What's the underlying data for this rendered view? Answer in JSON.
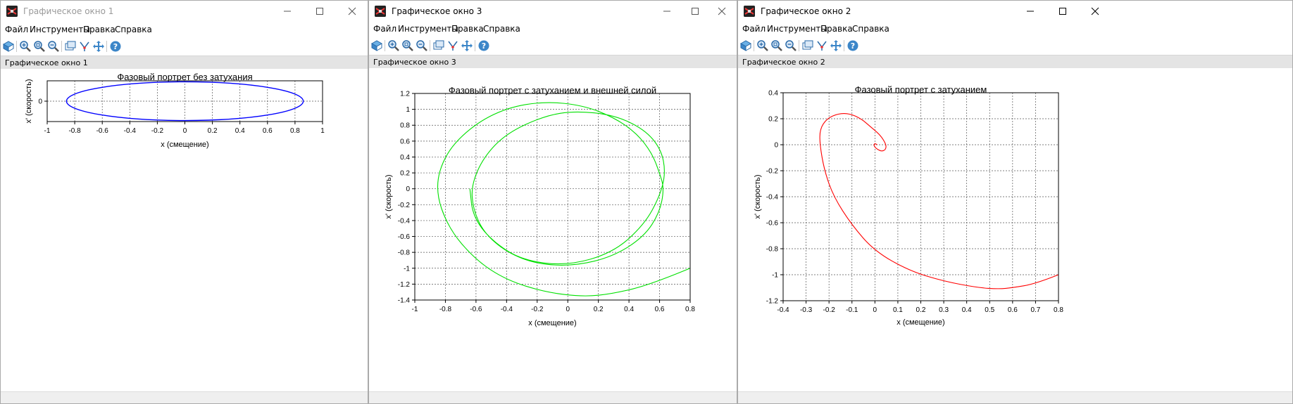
{
  "menu": [
    "Файл",
    "Инструменты",
    "Правка",
    "Справка"
  ],
  "windows": [
    {
      "title": "Графическое окно 1",
      "subheader": "Графическое окно 1",
      "active": false,
      "chart_data": {
        "type": "line",
        "title": "Фазовый портрет без затухания",
        "xlabel": "x (смещение)",
        "ylabel": "x' (скорость)",
        "xlim": [
          -1,
          1
        ],
        "ylim": [
          -1,
          1
        ],
        "xticks": [
          -1,
          -0.8,
          -0.6,
          -0.4,
          -0.2,
          0,
          0.2,
          0.4,
          0.6,
          0.8,
          1
        ],
        "xtick_labels": [
          "-1",
          "-0.8",
          "-0.6",
          "-0.4",
          "-0.2",
          "0",
          "0.2",
          "0.4",
          "0.6",
          "0.8",
          "1"
        ],
        "yticks": [
          0
        ],
        "ytick_labels": [
          "0"
        ],
        "grid": true,
        "color": "#0000ff",
        "series": [
          {
            "shape": "ellipse",
            "center": [
              0,
              0
            ],
            "x_amplitude": 0.86,
            "y_amplitude": 0.95
          }
        ]
      }
    },
    {
      "title": "Графическое окно 3",
      "subheader": "Графическое окно 3",
      "active": false,
      "chart_data": {
        "type": "line",
        "title": "Фазовый портрет с затуханием и внешней силой",
        "xlabel": "x (смещение)",
        "ylabel": "x' (скорость)",
        "xlim": [
          -1,
          0.8
        ],
        "ylim": [
          -1.4,
          1.2
        ],
        "xticks": [
          -1,
          -0.8,
          -0.6,
          -0.4,
          -0.2,
          0,
          0.2,
          0.4,
          0.6,
          0.8
        ],
        "xtick_labels": [
          "-1",
          "-0.8",
          "-0.6",
          "-0.4",
          "-0.2",
          "0",
          "0.2",
          "0.4",
          "0.6",
          "0.8"
        ],
        "yticks": [
          -1.4,
          -1.2,
          -1,
          -0.8,
          -0.6,
          -0.4,
          -0.2,
          0,
          0.2,
          0.4,
          0.6,
          0.8,
          1,
          1.2
        ],
        "ytick_labels": [
          "-1.4",
          "-1.2",
          "-1",
          "-0.8",
          "-0.6",
          "-0.4",
          "-0.2",
          "0",
          "0.2",
          "0.4",
          "0.6",
          "0.8",
          "1",
          "1.2"
        ],
        "grid": true,
        "color": "#00e000",
        "series": [
          {
            "x": [
              0.8,
              0.55,
              0.3,
              0.1,
              -0.15,
              -0.4,
              -0.6,
              -0.78,
              -0.87,
              -0.8,
              -0.62,
              -0.4,
              -0.15,
              0.1,
              0.3,
              0.45,
              0.55,
              0.6,
              0.63,
              0.6,
              0.5,
              0.3,
              0.05,
              -0.2,
              -0.4,
              -0.55,
              -0.62,
              -0.63,
              -0.55,
              -0.4,
              -0.15,
              0.05,
              0.3,
              0.5,
              0.61,
              0.64,
              0.6,
              0.5,
              0.3,
              0,
              -0.3,
              -0.5,
              -0.62,
              -0.64
            ],
            "y": [
              -1.0,
              -1.2,
              -1.32,
              -1.36,
              -1.3,
              -1.15,
              -0.9,
              -0.5,
              0.0,
              0.45,
              0.8,
              1.02,
              1.1,
              1.05,
              0.9,
              0.7,
              0.45,
              0.2,
              0.0,
              -0.3,
              -0.6,
              -0.85,
              -0.97,
              -0.95,
              -0.8,
              -0.55,
              -0.25,
              0.05,
              0.4,
              0.7,
              0.92,
              0.98,
              0.93,
              0.75,
              0.5,
              0.2,
              -0.1,
              -0.45,
              -0.8,
              -0.97,
              -0.9,
              -0.65,
              -0.35,
              0.0
            ]
          }
        ]
      }
    },
    {
      "title": "Графическое окно 2",
      "subheader": "Графическое окно 2",
      "active": true,
      "chart_data": {
        "type": "line",
        "title": "Фазовый портрет с затуханием",
        "xlabel": "x (смещение)",
        "ylabel": "x' (скорость)",
        "xlim": [
          -0.4,
          0.8
        ],
        "ylim": [
          -1.2,
          0.4
        ],
        "xticks": [
          -0.4,
          -0.3,
          -0.2,
          -0.1,
          0,
          0.1,
          0.2,
          0.3,
          0.4,
          0.5,
          0.6,
          0.7,
          0.8
        ],
        "xtick_labels": [
          "-0.4",
          "-0.3",
          "-0.2",
          "-0.1",
          "0",
          "0.1",
          "0.2",
          "0.3",
          "0.4",
          "0.5",
          "0.6",
          "0.7",
          "0.8"
        ],
        "yticks": [
          -1.2,
          -1,
          -0.8,
          -0.6,
          -0.4,
          -0.2,
          0,
          0.2,
          0.4
        ],
        "ytick_labels": [
          "-1.2",
          "-1",
          "-0.8",
          "-0.6",
          "-0.4",
          "-0.2",
          "0",
          "0.2",
          "0.4"
        ],
        "grid": true,
        "color": "#ff0000",
        "series": [
          {
            "x": [
              0.8,
              0.7,
              0.6,
              0.54,
              0.45,
              0.3,
              0.15,
              0.0,
              -0.1,
              -0.18,
              -0.22,
              -0.24,
              -0.24,
              -0.21,
              -0.16,
              -0.11,
              -0.06,
              -0.02,
              0.02,
              0.04,
              0.05,
              0.045,
              0.03,
              0.015,
              0.0,
              -0.005,
              0.0,
              0.01
            ],
            "y": [
              -1.0,
              -1.07,
              -1.1,
              -1.11,
              -1.1,
              -1.05,
              -0.97,
              -0.82,
              -0.62,
              -0.4,
              -0.2,
              0.0,
              0.12,
              0.2,
              0.24,
              0.24,
              0.2,
              0.14,
              0.08,
              0.03,
              -0.01,
              -0.04,
              -0.05,
              -0.04,
              -0.02,
              0.0,
              0.01,
              0.0
            ]
          }
        ]
      }
    }
  ],
  "toolbar_icons": [
    "rotate-icon",
    "zoom-in-icon",
    "zoom-reset-icon",
    "zoom-out-icon",
    "datatip-icon",
    "datatip-edit-icon",
    "pan-icon",
    "help-icon"
  ]
}
